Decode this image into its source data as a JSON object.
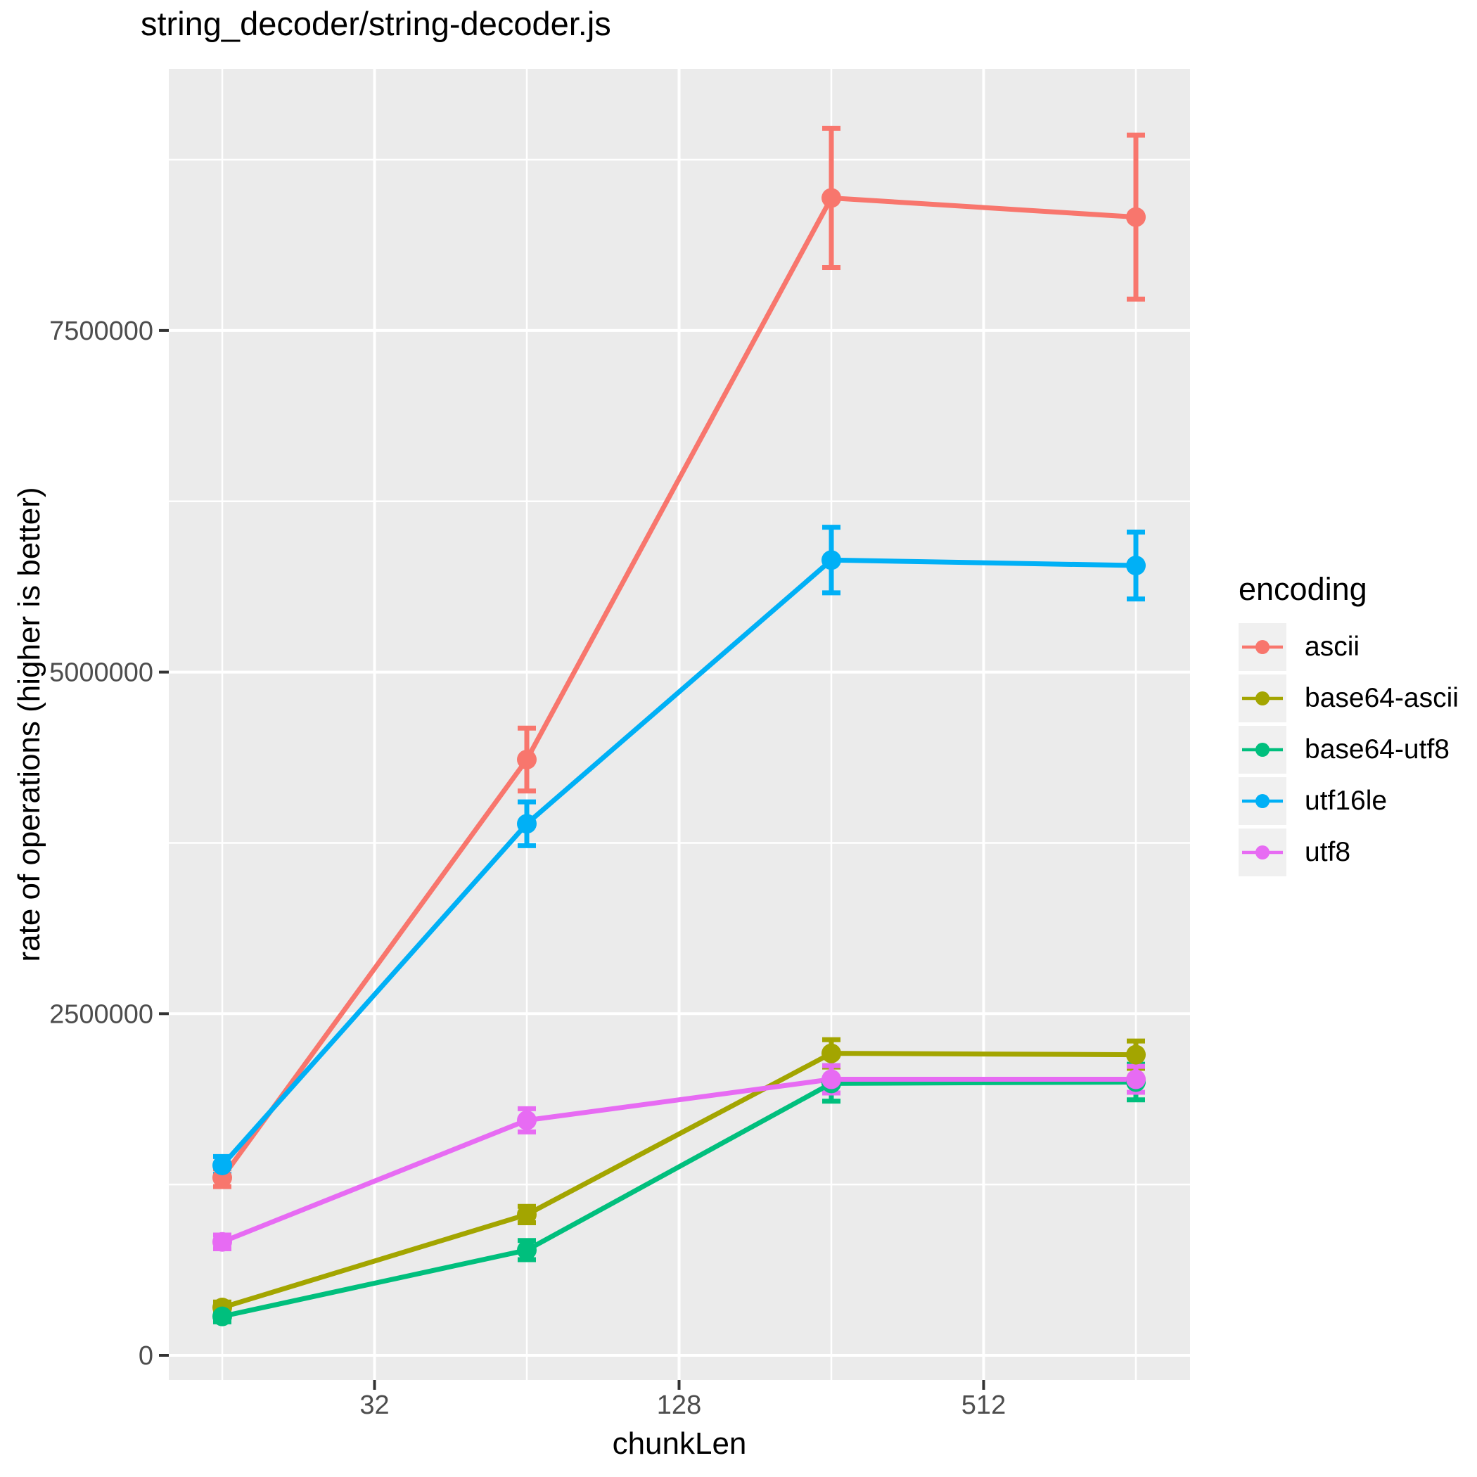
{
  "title": "string_decoder/string-decoder.js",
  "axes": {
    "x": {
      "label": "chunkLen",
      "scale": "log2",
      "ticks": [
        {
          "value": 32,
          "label": "32"
        },
        {
          "value": 128,
          "label": "128"
        },
        {
          "value": 512,
          "label": "512"
        }
      ],
      "minor_gridlines": [
        16,
        64,
        256,
        1024
      ]
    },
    "y": {
      "label": "rate of operations (higher is better)",
      "ticks": [
        {
          "value": 0,
          "label": "0"
        },
        {
          "value": 2500000,
          "label": "2500000"
        },
        {
          "value": 5000000,
          "label": "5000000"
        },
        {
          "value": 7500000,
          "label": "7500000"
        }
      ],
      "minor_gridlines": [
        1250000,
        3750000,
        6250000,
        8750000
      ]
    }
  },
  "legend": {
    "title": "encoding",
    "items": [
      {
        "label": "ascii",
        "color": "#F8766D"
      },
      {
        "label": "base64-ascii",
        "color": "#A3A500"
      },
      {
        "label": "base64-utf8",
        "color": "#00BF7D"
      },
      {
        "label": "utf16le",
        "color": "#00B0F6"
      },
      {
        "label": "utf8",
        "color": "#E76BF3"
      }
    ]
  },
  "chart_data": {
    "type": "line",
    "title": "string_decoder/string-decoder.js",
    "xlabel": "chunkLen",
    "ylabel": "rate of operations (higher is better)",
    "x_scale": "log2",
    "x": [
      16,
      64,
      256,
      1024
    ],
    "ylim": [
      0,
      9400000
    ],
    "grid": true,
    "legend_position": "right",
    "error_bars": true,
    "series": [
      {
        "name": "ascii",
        "color": "#F8766D",
        "values": [
          1300000,
          4360000,
          8470000,
          8330000
        ],
        "errors": [
          65000,
          230000,
          510000,
          600000
        ]
      },
      {
        "name": "base64-ascii",
        "color": "#A3A500",
        "values": [
          350000,
          1030000,
          2210000,
          2200000
        ],
        "errors": [
          40000,
          60000,
          100000,
          100000
        ]
      },
      {
        "name": "base64-utf8",
        "color": "#00BF7D",
        "values": [
          285000,
          770000,
          1990000,
          2000000
        ],
        "errors": [
          40000,
          70000,
          130000,
          130000
        ]
      },
      {
        "name": "utf16le",
        "color": "#00B0F6",
        "values": [
          1390000,
          3890000,
          5820000,
          5780000
        ],
        "errors": [
          65000,
          160000,
          240000,
          245000
        ]
      },
      {
        "name": "utf8",
        "color": "#E76BF3",
        "values": [
          830000,
          1720000,
          2020000,
          2020000
        ],
        "errors": [
          50000,
          85000,
          100000,
          95000
        ]
      }
    ]
  },
  "style": {
    "panel_bg": "#EBEBEB",
    "grid_color": "#FFFFFF",
    "tick_mark_color": "#333333",
    "tick_label_color": "#4D4D4D",
    "legend_key_bg": "#F0F0F0",
    "title_color": "#000000"
  }
}
